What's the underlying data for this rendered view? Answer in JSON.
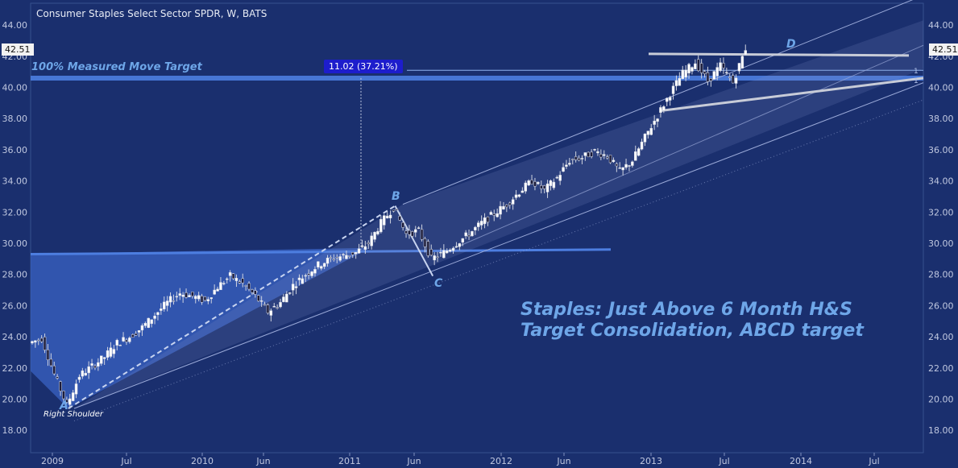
{
  "title": "Consumer Staples Select Sector SPDR, W, BATS",
  "caption": {
    "line1": "Staples: Just Above 6 Month H&S",
    "line2": "Target Consolidation, ABCD target"
  },
  "annotations": {
    "measured_move": "100% Measured Move Target",
    "measure_badge": "11.02 (37.21%)",
    "right_shoulder": "Right Shoulder",
    "fib_label_1": "1",
    "fib_label_2": "1",
    "point_a": "A",
    "point_b": "B",
    "point_c": "C",
    "point_d": "D"
  },
  "price_badge": "42.51",
  "colors": {
    "background": "#1a2f6e",
    "up_candle": "#ffffff",
    "down_candle": "#1c1c3a",
    "accent": "#6ea6e8",
    "channel": "#9aa9d8",
    "hs_fill": "#3a63c4"
  },
  "chart_data": {
    "type": "candlestick",
    "title": "Consumer Staples Select Sector SPDR, W, BATS",
    "ylim": [
      17,
      45
    ],
    "yticks": [
      "18.00",
      "20.00",
      "22.00",
      "24.00",
      "26.00",
      "28.00",
      "30.00",
      "32.00",
      "34.00",
      "36.00",
      "38.00",
      "40.00",
      "42.00",
      "44.00"
    ],
    "xticks": [
      "2009",
      "Jul",
      "2010",
      "Jun",
      "2011",
      "Jun",
      "2012",
      "Jun",
      "2013",
      "Jul",
      "2014",
      "Jul"
    ],
    "grid": false,
    "last_price": 42.51,
    "abcd_points": [
      {
        "label": "A",
        "date": "2009-03",
        "price": 19.4
      },
      {
        "label": "B",
        "date": "2011-05",
        "price": 32.4
      },
      {
        "label": "C",
        "date": "2011-08",
        "price": 27.9
      },
      {
        "label": "D",
        "date": "2013-09",
        "price": 42.9
      }
    ],
    "measured_move_target": 40.6,
    "measured_move": "11.02 (37.21%)",
    "neckline": 29.6,
    "weekly_close_path": [
      {
        "date": "2008-12",
        "price": 23.6
      },
      {
        "date": "2009-01",
        "price": 23.9
      },
      {
        "date": "2009-02",
        "price": 21.6
      },
      {
        "date": "2009-03",
        "price": 19.6
      },
      {
        "date": "2009-04",
        "price": 21.5
      },
      {
        "date": "2009-05",
        "price": 22.1
      },
      {
        "date": "2009-06",
        "price": 22.7
      },
      {
        "date": "2009-07",
        "price": 23.6
      },
      {
        "date": "2009-08",
        "price": 24.0
      },
      {
        "date": "2009-09",
        "price": 24.6
      },
      {
        "date": "2009-10",
        "price": 25.4
      },
      {
        "date": "2009-11",
        "price": 26.2
      },
      {
        "date": "2009-12",
        "price": 26.8
      },
      {
        "date": "2010-01",
        "price": 26.6
      },
      {
        "date": "2010-02",
        "price": 26.3
      },
      {
        "date": "2010-03",
        "price": 27.2
      },
      {
        "date": "2010-04",
        "price": 27.9
      },
      {
        "date": "2010-05",
        "price": 27.4
      },
      {
        "date": "2010-06",
        "price": 26.6
      },
      {
        "date": "2010-07",
        "price": 25.6
      },
      {
        "date": "2010-08",
        "price": 26.2
      },
      {
        "date": "2010-09",
        "price": 27.3
      },
      {
        "date": "2010-10",
        "price": 28.0
      },
      {
        "date": "2010-11",
        "price": 28.6
      },
      {
        "date": "2010-12",
        "price": 29.0
      },
      {
        "date": "2011-01",
        "price": 29.2
      },
      {
        "date": "2011-02",
        "price": 29.4
      },
      {
        "date": "2011-03",
        "price": 30.0
      },
      {
        "date": "2011-04",
        "price": 31.3
      },
      {
        "date": "2011-05",
        "price": 32.3
      },
      {
        "date": "2011-06",
        "price": 30.6
      },
      {
        "date": "2011-07",
        "price": 30.8
      },
      {
        "date": "2011-08",
        "price": 29.0
      },
      {
        "date": "2011-09",
        "price": 29.4
      },
      {
        "date": "2011-10",
        "price": 30.0
      },
      {
        "date": "2011-11",
        "price": 30.6
      },
      {
        "date": "2011-12",
        "price": 31.3
      },
      {
        "date": "2012-01",
        "price": 31.9
      },
      {
        "date": "2012-02",
        "price": 32.5
      },
      {
        "date": "2012-03",
        "price": 33.3
      },
      {
        "date": "2012-04",
        "price": 34.0
      },
      {
        "date": "2012-05",
        "price": 33.4
      },
      {
        "date": "2012-06",
        "price": 34.2
      },
      {
        "date": "2012-07",
        "price": 35.3
      },
      {
        "date": "2012-08",
        "price": 35.5
      },
      {
        "date": "2012-09",
        "price": 35.9
      },
      {
        "date": "2012-10",
        "price": 35.6
      },
      {
        "date": "2012-11",
        "price": 34.6
      },
      {
        "date": "2012-12",
        "price": 35.3
      },
      {
        "date": "2013-01",
        "price": 36.8
      },
      {
        "date": "2013-02",
        "price": 38.2
      },
      {
        "date": "2013-03",
        "price": 39.6
      },
      {
        "date": "2013-04",
        "price": 40.9
      },
      {
        "date": "2013-05",
        "price": 41.6
      },
      {
        "date": "2013-06",
        "price": 40.4
      },
      {
        "date": "2013-07",
        "price": 41.4
      },
      {
        "date": "2013-08",
        "price": 40.3
      },
      {
        "date": "2013-09",
        "price": 42.5
      }
    ]
  }
}
